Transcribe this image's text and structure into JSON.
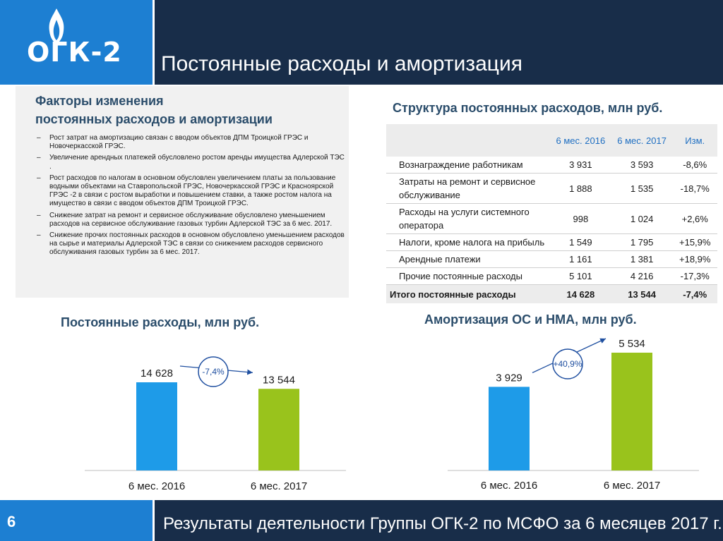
{
  "header": {
    "logo_text": "ОГК-2",
    "title": "Постоянные расходы и амортизация"
  },
  "factors": {
    "title_line1": "Факторы изменения",
    "title_line2": "постоянных расходов и амортизации",
    "bullets": [
      "Рост затрат на амортизацию связан с вводом объектов ДПМ Троицкой ГРЭС и Новочеркасской ГРЭС.",
      "Увеличение арендных платежей обусловлено ростом аренды имущества Адлерской ТЭС .",
      "Рост расходов по налогам в основном обусловлен увеличением платы за пользование водными объектами на  Ставропольской ГРЭС, Новочеркасской ГРЭС и Красноярской ГРЭС -2 в связи с ростом выработки и повышением ставки, а также ростом налога на имущество в связи с вводом объектов ДПМ Троицкой ГРЭС.",
      "Снижение затрат на ремонт и сервисное обслуживание обусловлено уменьшением расходов на сервисное обслуживание газовых турбин Адлерской ТЭС за 6 мес. 2017.",
      "Снижение прочих постоянных расходов в основном обусловлено уменьшением расходов на сырье и материалы Адлерской ТЭС в связи со снижением расходов сервисного обслуживания газовых турбин за 6 мес. 2017."
    ],
    "dash": "–"
  },
  "structure": {
    "title": "Структура постоянных расходов, млн руб.",
    "columns": [
      "",
      "6 мес. 2016",
      "6 мес. 2017",
      "Изм."
    ],
    "rows": [
      {
        "name": "Вознаграждение работникам",
        "v2016": "3 931",
        "v2017": "3 593",
        "change": "-8,6%"
      },
      {
        "name": "Затраты на ремонт и сервисное обслуживание",
        "v2016": "1 888",
        "v2017": "1 535",
        "change": "-18,7%"
      },
      {
        "name": "Расходы на услуги системного оператора",
        "v2016": "998",
        "v2017": "1 024",
        "change": "+2,6%"
      },
      {
        "name": "Налоги, кроме налога на прибыль",
        "v2016": "1 549",
        "v2017": "1 795",
        "change": "+15,9%"
      },
      {
        "name": "Арендные платежи",
        "v2016": "1 161",
        "v2017": "1 381",
        "change": "+18,9%"
      },
      {
        "name": "Прочие постоянные расходы",
        "v2016": "5 101",
        "v2017": "4 216",
        "change": "-17,3%"
      }
    ],
    "total": {
      "name": "Итого постоянные расходы",
      "v2016": "14 628",
      "v2017": "13 544",
      "change": "-7,4%"
    }
  },
  "chart_data": [
    {
      "type": "bar",
      "title": "Постоянные расходы, млн руб.",
      "categories": [
        "6 мес. 2016",
        "6 мес. 2017"
      ],
      "values": [
        14628,
        13544
      ],
      "value_labels": [
        "14 628",
        "13 544"
      ],
      "colors": [
        "#1e9be8",
        "#99c31c"
      ],
      "change_label": "-7,4%",
      "xlabel": "",
      "ylabel": ""
    },
    {
      "type": "bar",
      "title": "Амортизация ОС и НМА, млн руб.",
      "categories": [
        "6 мес. 2016",
        "6 мес. 2017"
      ],
      "values": [
        3929,
        5534
      ],
      "value_labels": [
        "3 929",
        "5 534"
      ],
      "colors": [
        "#1e9be8",
        "#99c31c"
      ],
      "change_label": "+40,9%",
      "xlabel": "",
      "ylabel": ""
    }
  ],
  "footer": {
    "page_number": "6",
    "text": "Результаты деятельности Группы ОГК-2 по МСФО за 6 месяцев 2017 г."
  },
  "colors": {
    "brand_blue": "#1d7fd2",
    "header_dark": "#182d49",
    "bar_blue": "#1e9be8",
    "bar_green": "#99c31c",
    "title_color": "#2b4d6b"
  }
}
